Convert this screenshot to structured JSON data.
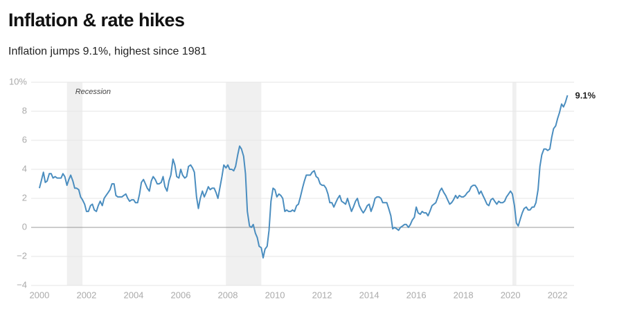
{
  "chart_data": {
    "type": "line",
    "title": "Inflation & rate hikes",
    "subtitle": "Inflation jumps 9.1%, highest since 1981",
    "recession_label": "Recession",
    "recessions": [
      [
        2001.17,
        2001.83
      ],
      [
        2007.92,
        2009.42
      ],
      [
        2020.08,
        2020.25
      ]
    ],
    "xlim": [
      1999.65,
      2022.7
    ],
    "xticks": [
      2000,
      2002,
      2004,
      2006,
      2008,
      2010,
      2012,
      2014,
      2016,
      2018,
      2020,
      2022
    ],
    "ylim": [
      -4,
      10
    ],
    "yticks": [
      {
        "value": 10,
        "label": "10%"
      },
      8,
      6,
      4,
      2,
      0,
      {
        "value": -2,
        "label": "−2"
      },
      {
        "value": -4,
        "label": "−4"
      }
    ],
    "grid": true,
    "x": [
      2000,
      2000.08,
      2000.17,
      2000.25,
      2000.33,
      2000.42,
      2000.5,
      2000.58,
      2000.67,
      2000.75,
      2000.83,
      2000.92,
      2001,
      2001.08,
      2001.17,
      2001.25,
      2001.33,
      2001.42,
      2001.5,
      2001.58,
      2001.67,
      2001.75,
      2001.83,
      2001.92,
      2002,
      2002.08,
      2002.17,
      2002.25,
      2002.33,
      2002.42,
      2002.5,
      2002.58,
      2002.67,
      2002.75,
      2002.83,
      2002.92,
      2003,
      2003.08,
      2003.17,
      2003.25,
      2003.33,
      2003.42,
      2003.5,
      2003.58,
      2003.67,
      2003.75,
      2003.83,
      2003.92,
      2004,
      2004.08,
      2004.17,
      2004.25,
      2004.33,
      2004.42,
      2004.5,
      2004.58,
      2004.67,
      2004.75,
      2004.83,
      2004.92,
      2005,
      2005.08,
      2005.17,
      2005.25,
      2005.33,
      2005.42,
      2005.5,
      2005.58,
      2005.67,
      2005.75,
      2005.83,
      2005.92,
      2006,
      2006.08,
      2006.17,
      2006.25,
      2006.33,
      2006.42,
      2006.5,
      2006.58,
      2006.67,
      2006.75,
      2006.83,
      2006.92,
      2007,
      2007.08,
      2007.17,
      2007.25,
      2007.33,
      2007.42,
      2007.5,
      2007.58,
      2007.67,
      2007.75,
      2007.83,
      2007.92,
      2008,
      2008.08,
      2008.17,
      2008.25,
      2008.33,
      2008.42,
      2008.5,
      2008.58,
      2008.67,
      2008.75,
      2008.83,
      2008.92,
      2009,
      2009.08,
      2009.17,
      2009.25,
      2009.33,
      2009.42,
      2009.5,
      2009.58,
      2009.67,
      2009.75,
      2009.83,
      2009.92,
      2010,
      2010.08,
      2010.17,
      2010.25,
      2010.33,
      2010.42,
      2010.5,
      2010.58,
      2010.67,
      2010.75,
      2010.83,
      2010.92,
      2011,
      2011.08,
      2011.17,
      2011.25,
      2011.33,
      2011.42,
      2011.5,
      2011.58,
      2011.67,
      2011.75,
      2011.83,
      2011.92,
      2012,
      2012.08,
      2012.17,
      2012.25,
      2012.33,
      2012.42,
      2012.5,
      2012.58,
      2012.67,
      2012.75,
      2012.83,
      2012.92,
      2013,
      2013.08,
      2013.17,
      2013.25,
      2013.33,
      2013.42,
      2013.5,
      2013.58,
      2013.67,
      2013.75,
      2013.83,
      2013.92,
      2014,
      2014.08,
      2014.17,
      2014.25,
      2014.33,
      2014.42,
      2014.5,
      2014.58,
      2014.67,
      2014.75,
      2014.83,
      2014.92,
      2015,
      2015.08,
      2015.17,
      2015.25,
      2015.33,
      2015.42,
      2015.5,
      2015.58,
      2015.67,
      2015.75,
      2015.83,
      2015.92,
      2016,
      2016.08,
      2016.17,
      2016.25,
      2016.33,
      2016.42,
      2016.5,
      2016.58,
      2016.67,
      2016.75,
      2016.83,
      2016.92,
      2017,
      2017.08,
      2017.17,
      2017.25,
      2017.33,
      2017.42,
      2017.5,
      2017.58,
      2017.67,
      2017.75,
      2017.83,
      2017.92,
      2018,
      2018.08,
      2018.17,
      2018.25,
      2018.33,
      2018.42,
      2018.5,
      2018.58,
      2018.67,
      2018.75,
      2018.83,
      2018.92,
      2019,
      2019.08,
      2019.17,
      2019.25,
      2019.33,
      2019.42,
      2019.5,
      2019.58,
      2019.67,
      2019.75,
      2019.83,
      2019.92,
      2020,
      2020.08,
      2020.17,
      2020.25,
      2020.33,
      2020.42,
      2020.5,
      2020.58,
      2020.67,
      2020.75,
      2020.83,
      2020.92,
      2021,
      2021.08,
      2021.17,
      2021.25,
      2021.33,
      2021.42,
      2021.5,
      2021.58,
      2021.67,
      2021.75,
      2021.83,
      2021.92,
      2022,
      2022.08,
      2022.17,
      2022.25,
      2022.33,
      2022.42
    ],
    "series": [
      {
        "color": "#4a8dbf",
        "end_label": "9.1%",
        "values": [
          2.7,
          3.2,
          3.8,
          3.1,
          3.2,
          3.7,
          3.7,
          3.4,
          3.5,
          3.4,
          3.4,
          3.4,
          3.7,
          3.5,
          2.9,
          3.3,
          3.6,
          3.2,
          2.7,
          2.7,
          2.6,
          2.1,
          1.9,
          1.6,
          1.1,
          1.1,
          1.5,
          1.6,
          1.2,
          1.1,
          1.5,
          1.8,
          1.5,
          2.0,
          2.2,
          2.4,
          2.6,
          3.0,
          3.0,
          2.2,
          2.1,
          2.1,
          2.1,
          2.2,
          2.3,
          2.0,
          1.8,
          1.9,
          1.9,
          1.7,
          1.7,
          2.3,
          3.1,
          3.3,
          3.0,
          2.7,
          2.5,
          3.2,
          3.5,
          3.3,
          3.0,
          3.0,
          3.1,
          3.5,
          2.8,
          2.5,
          3.2,
          3.6,
          4.7,
          4.3,
          3.5,
          3.4,
          4.0,
          3.6,
          3.4,
          3.5,
          4.2,
          4.3,
          4.1,
          3.8,
          2.1,
          1.3,
          2.0,
          2.5,
          2.1,
          2.4,
          2.8,
          2.6,
          2.7,
          2.7,
          2.4,
          2.0,
          2.8,
          3.5,
          4.3,
          4.1,
          4.3,
          4.0,
          4.0,
          3.9,
          4.2,
          5.0,
          5.6,
          5.4,
          4.9,
          3.7,
          1.1,
          0.1,
          0.0,
          0.2,
          -0.4,
          -0.7,
          -1.3,
          -1.4,
          -2.1,
          -1.5,
          -1.3,
          -0.2,
          1.8,
          2.7,
          2.6,
          2.1,
          2.3,
          2.2,
          2.0,
          1.1,
          1.2,
          1.1,
          1.1,
          1.2,
          1.1,
          1.5,
          1.6,
          2.1,
          2.7,
          3.2,
          3.6,
          3.6,
          3.6,
          3.8,
          3.9,
          3.5,
          3.4,
          3.0,
          2.9,
          2.9,
          2.7,
          2.3,
          1.7,
          1.7,
          1.4,
          1.7,
          2.0,
          2.2,
          1.8,
          1.7,
          1.6,
          2.0,
          1.5,
          1.1,
          1.4,
          1.8,
          2.0,
          1.5,
          1.2,
          1.0,
          1.2,
          1.5,
          1.6,
          1.1,
          1.5,
          2.0,
          2.1,
          2.1,
          2.0,
          1.7,
          1.7,
          1.7,
          1.3,
          0.8,
          -0.1,
          0.0,
          -0.1,
          -0.2,
          0.0,
          0.1,
          0.2,
          0.2,
          0.0,
          0.2,
          0.5,
          0.7,
          1.4,
          1.0,
          0.9,
          1.1,
          1.0,
          1.0,
          0.8,
          1.1,
          1.5,
          1.6,
          1.7,
          2.1,
          2.5,
          2.7,
          2.4,
          2.2,
          1.9,
          1.6,
          1.7,
          1.9,
          2.2,
          2.0,
          2.2,
          2.1,
          2.1,
          2.2,
          2.4,
          2.5,
          2.8,
          2.9,
          2.9,
          2.7,
          2.3,
          2.5,
          2.2,
          1.9,
          1.6,
          1.5,
          1.9,
          2.0,
          1.8,
          1.6,
          1.8,
          1.7,
          1.7,
          1.8,
          2.1,
          2.3,
          2.5,
          2.3,
          1.5,
          0.3,
          0.1,
          0.6,
          1.0,
          1.3,
          1.4,
          1.2,
          1.2,
          1.4,
          1.4,
          1.7,
          2.6,
          4.2,
          5.0,
          5.4,
          5.4,
          5.3,
          5.4,
          6.2,
          6.8,
          7.0,
          7.5,
          7.9,
          8.5,
          8.3,
          8.6,
          9.1
        ]
      }
    ]
  }
}
